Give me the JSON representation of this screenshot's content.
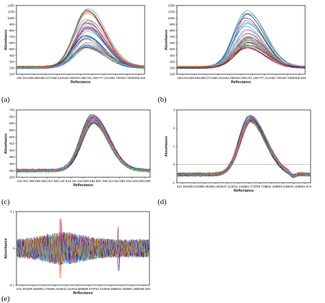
{
  "figure": {
    "panels": [
      {
        "id": "a",
        "label": "(a)"
      },
      {
        "id": "b",
        "label": "(b)"
      },
      {
        "id": "c",
        "label": "(c)"
      },
      {
        "id": "d",
        "label": "(d)"
      },
      {
        "id": "e",
        "label": "(e)"
      }
    ]
  },
  "chart_data": [
    {
      "id": "a",
      "type": "line",
      "xlabel": "Reflectance",
      "ylabel": "Absorbance",
      "x_ticks": [
        "230.016",
        "309.659",
        "389.073",
        "468.243",
        "546.499",
        "624.065",
        "701.105",
        "777.214",
        "852.706",
        "927.092",
        "1005.949"
      ],
      "y_ticks": [
        100,
        200,
        300,
        400,
        500,
        600,
        700,
        800,
        900,
        1000,
        1100,
        1200
      ],
      "ylim": [
        100,
        1200
      ],
      "series_summary": {
        "count": 40,
        "peak_x": "701.105",
        "peak_range": [
          520,
          1150
        ],
        "baseline_range": [
          180,
          240
        ]
      }
    },
    {
      "id": "b",
      "type": "line",
      "xlabel": "Reflectance",
      "ylabel": "Absorbance",
      "x_ticks": [
        "230.016",
        "309.659",
        "389.073",
        "468.243",
        "546.499",
        "624.065",
        "701.105",
        "777.214",
        "852.706",
        "927.092",
        "1005.949"
      ],
      "y_ticks": [
        100,
        200,
        300,
        400,
        500,
        600,
        700,
        800,
        900,
        1000,
        1100,
        1200
      ],
      "ylim": [
        100,
        1200
      ],
      "series_summary": {
        "count": 40,
        "peak_x": "701.105",
        "peak_range": [
          520,
          1150
        ],
        "baseline_range": [
          180,
          240
        ]
      }
    },
    {
      "id": "c",
      "type": "line",
      "xlabel": "Reflectance",
      "ylabel": "Absorbance",
      "x_ticks": [
        "231.091",
        "309.559",
        "388.013",
        "466.140",
        "543.111",
        "618.669",
        "694.804",
        "768.112",
        "842.881",
        "916.201",
        "1000.880"
      ],
      "y_ticks": [
        200,
        250,
        300,
        350,
        400,
        450,
        500,
        550,
        600,
        650,
        700
      ],
      "ylim": [
        200,
        700
      ],
      "series_summary": {
        "count": 40,
        "peak_x": "694.804",
        "peak_range": [
          600,
          670
        ],
        "baseline_range": [
          240,
          270
        ]
      }
    },
    {
      "id": "d",
      "type": "line",
      "xlabel": "Reflectance",
      "ylabel": "Absorbance",
      "x_ticks": [
        "231.091",
        "308.224",
        "385.063",
        "461.653",
        "537.113",
        "611.144",
        "684.773",
        "758.718",
        "832.158",
        "904.546",
        "976.103",
        "1051.874"
      ],
      "y_ticks": [
        -1,
        0,
        1,
        2,
        3
      ],
      "ylim": [
        -1,
        3
      ],
      "series_summary": {
        "count": 40,
        "peak_x": "684.773",
        "peak_range": [
          2.3,
          2.7
        ],
        "baseline_range": [
          -0.7,
          -0.4
        ]
      }
    },
    {
      "id": "e",
      "type": "line",
      "xlabel": "Reflectance",
      "ylabel": "Absorbance",
      "x_ticks": [
        "231.091",
        "306.559",
        "382.278",
        "466.403",
        "543.111",
        "616.880",
        "686.076",
        "752.043",
        "846.686",
        "916.430",
        "991.290",
        "1068.062"
      ],
      "y_ticks": [
        -0.1,
        0,
        0.1
      ],
      "ylim": [
        -0.1,
        0.1
      ],
      "series_summary": {
        "count": 40,
        "shape": "noise around zero"
      }
    }
  ]
}
